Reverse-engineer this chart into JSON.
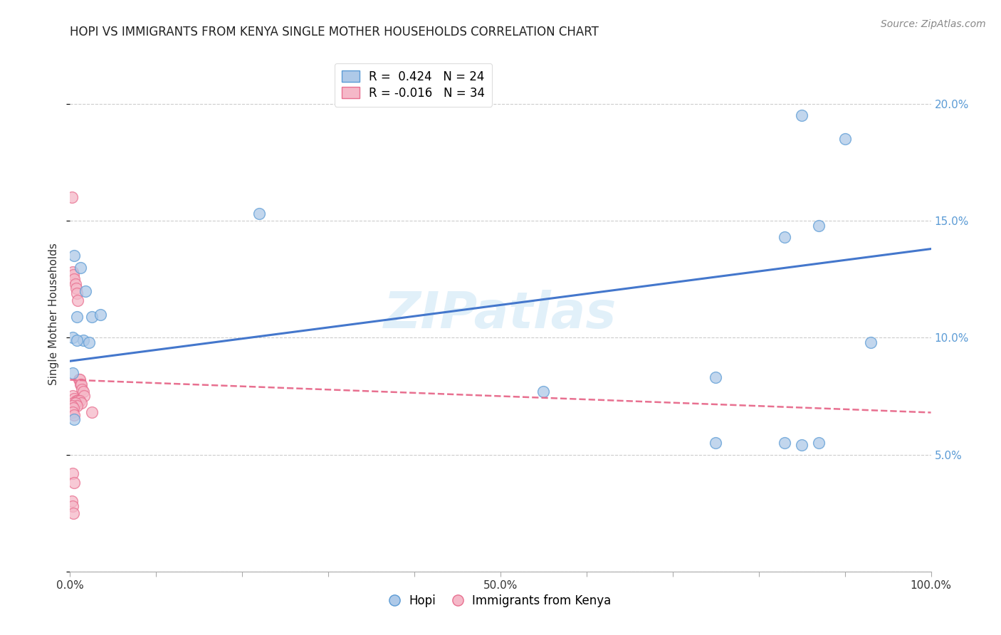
{
  "title": "HOPI VS IMMIGRANTS FROM KENYA SINGLE MOTHER HOUSEHOLDS CORRELATION CHART",
  "source": "Source: ZipAtlas.com",
  "ylabel": "Single Mother Households",
  "xlabel": "",
  "xlim": [
    0,
    1.0
  ],
  "ylim": [
    0,
    0.22
  ],
  "xticks": [
    0.0,
    0.1,
    0.2,
    0.3,
    0.4,
    0.5,
    0.6,
    0.7,
    0.8,
    0.9,
    1.0
  ],
  "xticklabels": [
    "0.0%",
    "",
    "",
    "",
    "",
    "50.0%",
    "",
    "",
    "",
    "",
    "100.0%"
  ],
  "yticks": [
    0.0,
    0.05,
    0.1,
    0.15,
    0.2
  ],
  "yticklabels": [
    "",
    "5.0%",
    "10.0%",
    "15.0%",
    "20.0%"
  ],
  "hopi_color": "#aec9e8",
  "kenya_color": "#f5b8c8",
  "hopi_edge_color": "#5b9bd5",
  "kenya_edge_color": "#e87090",
  "hopi_line_color": "#4477cc",
  "kenya_line_color": "#e87090",
  "legend_label_hopi": "R =  0.424   N = 24",
  "legend_label_kenya": "R = -0.016   N = 34",
  "watermark": "ZIPatlas",
  "hopi_x": [
    0.005,
    0.012,
    0.018,
    0.025,
    0.035,
    0.008,
    0.015,
    0.022,
    0.003,
    0.008,
    0.003,
    0.005,
    0.22,
    0.55,
    0.75,
    0.83,
    0.85,
    0.87,
    0.9,
    0.93,
    0.83,
    0.87,
    0.85,
    0.75
  ],
  "hopi_y": [
    0.135,
    0.13,
    0.12,
    0.109,
    0.11,
    0.109,
    0.099,
    0.098,
    0.1,
    0.099,
    0.085,
    0.065,
    0.153,
    0.077,
    0.083,
    0.143,
    0.195,
    0.148,
    0.185,
    0.098,
    0.055,
    0.055,
    0.054,
    0.055
  ],
  "kenya_x": [
    0.002,
    0.003,
    0.004,
    0.005,
    0.006,
    0.007,
    0.008,
    0.009,
    0.01,
    0.011,
    0.012,
    0.013,
    0.014,
    0.015,
    0.016,
    0.003,
    0.005,
    0.007,
    0.009,
    0.011,
    0.013,
    0.004,
    0.006,
    0.008,
    0.002,
    0.004,
    0.003,
    0.005,
    0.025,
    0.003,
    0.005,
    0.002,
    0.003,
    0.004
  ],
  "kenya_y": [
    0.16,
    0.128,
    0.127,
    0.125,
    0.123,
    0.121,
    0.119,
    0.116,
    0.082,
    0.082,
    0.08,
    0.08,
    0.078,
    0.077,
    0.075,
    0.075,
    0.074,
    0.073,
    0.073,
    0.073,
    0.072,
    0.072,
    0.072,
    0.071,
    0.071,
    0.07,
    0.068,
    0.067,
    0.068,
    0.042,
    0.038,
    0.03,
    0.028,
    0.025
  ],
  "hopi_trendline": [
    0.0,
    1.0,
    0.09,
    0.138
  ],
  "kenya_trendline": [
    0.0,
    1.0,
    0.082,
    0.068
  ]
}
